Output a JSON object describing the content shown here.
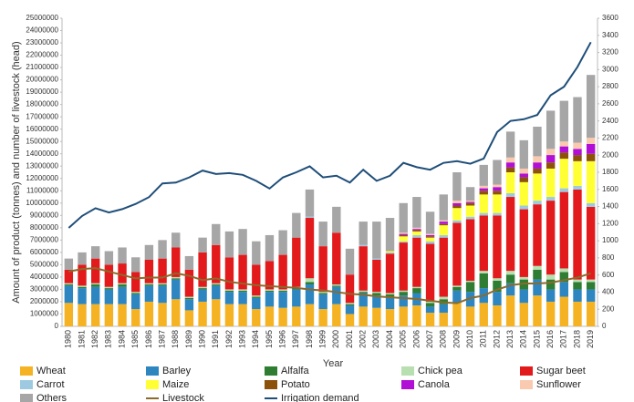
{
  "chart_data": {
    "type": "bar",
    "stacked": true,
    "x_label": "Year",
    "y_label": "Amount of product (tonnes) and number of livestock (head)",
    "categories": [
      "1980",
      "1981",
      "1982",
      "1983",
      "1984",
      "1985",
      "1986",
      "1987",
      "1988",
      "1989",
      "1990",
      "1991",
      "1992",
      "1993",
      "1994",
      "1995",
      "1996",
      "1997",
      "1998",
      "1999",
      "2000",
      "2001",
      "2002",
      "2003",
      "2004",
      "2005",
      "2006",
      "2007",
      "2008",
      "2009",
      "2010",
      "2011",
      "2012",
      "2013",
      "2014",
      "2015",
      "2016",
      "2017",
      "2018",
      "2019"
    ],
    "ylim": [
      0,
      25000000
    ],
    "yticks": [
      0,
      1000000,
      2000000,
      3000000,
      4000000,
      5000000,
      6000000,
      7000000,
      8000000,
      9000000,
      10000000,
      11000000,
      12000000,
      13000000,
      14000000,
      15000000,
      16000000,
      17000000,
      18000000,
      19000000,
      20000000,
      21000000,
      22000000,
      23000000,
      24000000,
      25000000
    ],
    "y2lim": [
      0,
      3600
    ],
    "y2ticks": [
      0,
      200,
      400,
      600,
      800,
      1000,
      1200,
      1400,
      1600,
      1800,
      2000,
      2200,
      2400,
      2600,
      2800,
      3000,
      3200,
      3400,
      3600
    ],
    "grid": false,
    "legend": "bottom",
    "series": [
      {
        "name": "Wheat",
        "color": "#f5b324",
        "values": [
          1900000.0,
          1800000.0,
          1800000.0,
          1800000.0,
          1800000.0,
          1400000.0,
          2000000.0,
          1900000.0,
          2200000.0,
          1300000.0,
          2000000.0,
          2200000.0,
          1800000.0,
          1800000.0,
          1400000.0,
          1600000.0,
          1500000.0,
          1600000.0,
          1800000.0,
          1400000.0,
          1800000.0,
          1000000.0,
          1600000.0,
          1500000.0,
          1400000.0,
          1600000.0,
          1700000.0,
          1100000.0,
          1100000.0,
          1900000.0,
          1600000.0,
          1900000.0,
          1700000.0,
          2500000.0,
          1900000.0,
          2500000.0,
          2000000.0,
          2400000.0,
          2000000.0,
          2000000.0
        ]
      },
      {
        "name": "Barley",
        "color": "#2e86c1",
        "values": [
          1400000.0,
          1300000.0,
          1400000.0,
          1200000.0,
          1400000.0,
          1200000.0,
          1300000.0,
          1400000.0,
          1600000.0,
          900000.0,
          1000000.0,
          1100000.0,
          1000000.0,
          1000000.0,
          900000.0,
          1200000.0,
          1300000.0,
          1400000.0,
          1600000.0,
          1200000.0,
          1400000.0,
          700000.0,
          1100000.0,
          1000000.0,
          1000000.0,
          900000.0,
          1000000.0,
          500000.0,
          700000.0,
          1000000.0,
          1200000.0,
          1200000.0,
          1100000.0,
          1000000.0,
          1100000.0,
          1300000.0,
          1000000.0,
          1200000.0,
          1000000.0,
          1000000.0
        ]
      },
      {
        "name": "Alfalfa",
        "color": "#2e7d32",
        "values": [
          100000.0,
          100000.0,
          200000.0,
          100000.0,
          200000.0,
          100000.0,
          100000.0,
          100000.0,
          100000.0,
          100000.0,
          100000.0,
          100000.0,
          100000.0,
          100000.0,
          100000.0,
          100000.0,
          100000.0,
          100000.0,
          200000.0,
          100000.0,
          100000.0,
          100000.0,
          100000.0,
          200000.0,
          200000.0,
          300000.0,
          400000.0,
          300000.0,
          400000.0,
          300000.0,
          800000.0,
          1200000.0,
          900000.0,
          700000.0,
          800000.0,
          800000.0,
          800000.0,
          800000.0,
          600000.0,
          600000.0
        ]
      },
      {
        "name": "Chick pea",
        "color": "#b7dfb0",
        "values": [
          100000.0,
          100000.0,
          100000.0,
          100000.0,
          100000.0,
          100000.0,
          100000.0,
          100000.0,
          100000.0,
          100000.0,
          100000.0,
          100000.0,
          100000.0,
          100000.0,
          100000.0,
          100000.0,
          100000.0,
          100000.0,
          300000.0,
          100000.0,
          100000.0,
          100000.0,
          100000.0,
          100000.0,
          100000.0,
          100000.0,
          100000.0,
          100000.0,
          200000.0,
          100000.0,
          100000.0,
          200000.0,
          200000.0,
          300000.0,
          200000.0,
          300000.0,
          400000.0,
          300000.0,
          200000.0,
          200000.0
        ]
      },
      {
        "name": "Sugar beet",
        "color": "#e31a1c",
        "values": [
          1100000.0,
          1700000.0,
          2000000.0,
          1800000.0,
          1600000.0,
          1600000.0,
          1900000.0,
          2000000.0,
          2400000.0,
          2200000.0,
          2800000.0,
          3100000.0,
          2600000.0,
          2800000.0,
          2500000.0,
          2300000.0,
          2800000.0,
          4000000.0,
          4900000.0,
          3700000.0,
          4200000.0,
          2300000.0,
          3600000.0,
          2600000.0,
          3200000.0,
          3900000.0,
          4000000.0,
          4700000.0,
          4800000.0,
          5100000.0,
          5000000.0,
          4500000.0,
          5100000.0,
          6000000.0,
          5500000.0,
          5000000.0,
          6000000.0,
          6200000.0,
          7300000.0,
          5900000.0
        ]
      },
      {
        "name": "Carrot",
        "color": "#9ecae1",
        "values": [
          0,
          0,
          0,
          0,
          0,
          0,
          0,
          0,
          0,
          0,
          0,
          0,
          0,
          0,
          0,
          0,
          0,
          0,
          100000.0,
          0,
          0,
          0,
          100000.0,
          100000.0,
          100000.0,
          100000.0,
          200000.0,
          200000.0,
          200000.0,
          200000.0,
          200000.0,
          200000.0,
          200000.0,
          300000.0,
          300000.0,
          300000.0,
          300000.0,
          300000.0,
          300000.0,
          300000.0
        ]
      },
      {
        "name": "Maize",
        "color": "#ffff33",
        "values": [
          0,
          0,
          0,
          0,
          0,
          0,
          0,
          0,
          0,
          0,
          0,
          0,
          0,
          0,
          0,
          0,
          0,
          0,
          0,
          0,
          0,
          0,
          0,
          0,
          100000.0,
          400000.0,
          300000.0,
          300000.0,
          800000.0,
          1000000.0,
          900000.0,
          1500000.0,
          1500000.0,
          1700000.0,
          1900000.0,
          2200000.0,
          2300000.0,
          2400000.0,
          2000000.0,
          3400000.0
        ]
      },
      {
        "name": "Potato",
        "color": "#8c510a",
        "values": [
          0,
          0,
          0,
          0,
          0,
          0,
          0,
          0,
          0,
          0,
          0,
          0,
          0,
          0,
          0,
          0,
          0,
          0,
          0,
          0,
          0,
          0,
          0,
          0,
          0,
          100000.0,
          100000.0,
          100000.0,
          100000.0,
          200000.0,
          200000.0,
          300000.0,
          300000.0,
          400000.0,
          400000.0,
          400000.0,
          500000.0,
          500000.0,
          500000.0,
          600000.0
        ]
      },
      {
        "name": "Canola",
        "color": "#b20fd6",
        "values": [
          0,
          0,
          0,
          0,
          0,
          0,
          0,
          0,
          0,
          0,
          0,
          0,
          0,
          0,
          0,
          0,
          0,
          0,
          0,
          0,
          0,
          0,
          0,
          0,
          0,
          100000.0,
          100000.0,
          100000.0,
          200000.0,
          200000.0,
          100000.0,
          200000.0,
          300000.0,
          400000.0,
          300000.0,
          500000.0,
          600000.0,
          500000.0,
          500000.0,
          800000.0
        ]
      },
      {
        "name": "Sunflower",
        "color": "#f9c9b0",
        "values": [
          0,
          0,
          0,
          0,
          0,
          0,
          0,
          0,
          0,
          0,
          0,
          0,
          0,
          0,
          0,
          0,
          0,
          0,
          0,
          0,
          0,
          0,
          0,
          0,
          0,
          100000.0,
          100000.0,
          100000.0,
          100000.0,
          200000.0,
          100000.0,
          200000.0,
          200000.0,
          400000.0,
          400000.0,
          500000.0,
          500000.0,
          400000.0,
          500000.0,
          500000.0
        ]
      },
      {
        "name": "Others",
        "color": "#a6a6a6",
        "values": [
          900000.0,
          1000000.0,
          1000000.0,
          1100000.0,
          1300000.0,
          1200000.0,
          1200000.0,
          1500000.0,
          1200000.0,
          1100000.0,
          1200000.0,
          1700000.0,
          2100000.0,
          2100000.0,
          1900000.0,
          2100000.0,
          2000000.0,
          2000000.0,
          2200000.0,
          2000000.0,
          2100000.0,
          2100000.0,
          1900000.0,
          3000000.0,
          2700000.0,
          2400000.0,
          2500000.0,
          1800000.0,
          2100000.0,
          2300000.0,
          1100000.0,
          1700000.0,
          2000000.0,
          2100000.0,
          2300000.0,
          2400000.0,
          3100000.0,
          3300000.0,
          3700000.0,
          5100000.0
        ]
      },
      {
        "name": "Livestock",
        "color": "#8b6a2b",
        "type": "line",
        "axis": "y2",
        "values": [
          640,
          670,
          680,
          640,
          600,
          560,
          570,
          570,
          620,
          590,
          540,
          560,
          520,
          500,
          480,
          470,
          460,
          450,
          430,
          420,
          400,
          380,
          370,
          350,
          340,
          330,
          320,
          300,
          280,
          270,
          330,
          360,
          430,
          480,
          500,
          500,
          510,
          540,
          570,
          620
        ]
      },
      {
        "name": "Irrigation demand",
        "color": "#1f4e79",
        "type": "line",
        "axis": "y2",
        "values": [
          1150,
          1290,
          1380,
          1330,
          1370,
          1430,
          1510,
          1670,
          1680,
          1740,
          1820,
          1780,
          1790,
          1770,
          1700,
          1610,
          1740,
          1800,
          1870,
          1740,
          1760,
          1680,
          1830,
          1700,
          1760,
          1910,
          1860,
          1830,
          1910,
          1930,
          1900,
          1960,
          2270,
          2400,
          2420,
          2470,
          2700,
          2800,
          3030,
          3320
        ]
      }
    ]
  }
}
